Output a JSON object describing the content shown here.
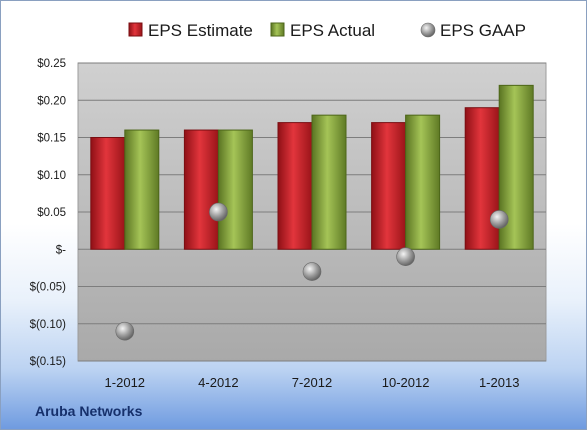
{
  "company": "Aruba Networks",
  "chart_data": {
    "type": "bar",
    "categories": [
      "1-2012",
      "4-2012",
      "7-2012",
      "10-2012",
      "1-2013"
    ],
    "series": [
      {
        "name": "EPS Estimate",
        "type": "bar",
        "color": "#c8232b",
        "values": [
          0.15,
          0.16,
          0.17,
          0.17,
          0.19
        ]
      },
      {
        "name": "EPS Actual",
        "type": "bar",
        "color": "#86a33c",
        "values": [
          0.16,
          0.16,
          0.18,
          0.18,
          0.22
        ]
      },
      {
        "name": "EPS GAAP",
        "type": "scatter",
        "color": "#8f8f8f",
        "values": [
          -0.11,
          0.05,
          -0.03,
          -0.01,
          0.04
        ]
      }
    ],
    "yticks": [
      {
        "value": 0.25,
        "label": "$0.25"
      },
      {
        "value": 0.2,
        "label": "$0.20"
      },
      {
        "value": 0.15,
        "label": "$0.15"
      },
      {
        "value": 0.1,
        "label": "$0.10"
      },
      {
        "value": 0.05,
        "label": "$0.05"
      },
      {
        "value": 0,
        "label": "$-"
      },
      {
        "value": -0.05,
        "label": "$(0.05)"
      },
      {
        "value": -0.1,
        "label": "$(0.10)"
      },
      {
        "value": -0.15,
        "label": "$(0.15)"
      }
    ],
    "ylim": [
      -0.15,
      0.25
    ],
    "legend_position": "top",
    "grid": true
  }
}
